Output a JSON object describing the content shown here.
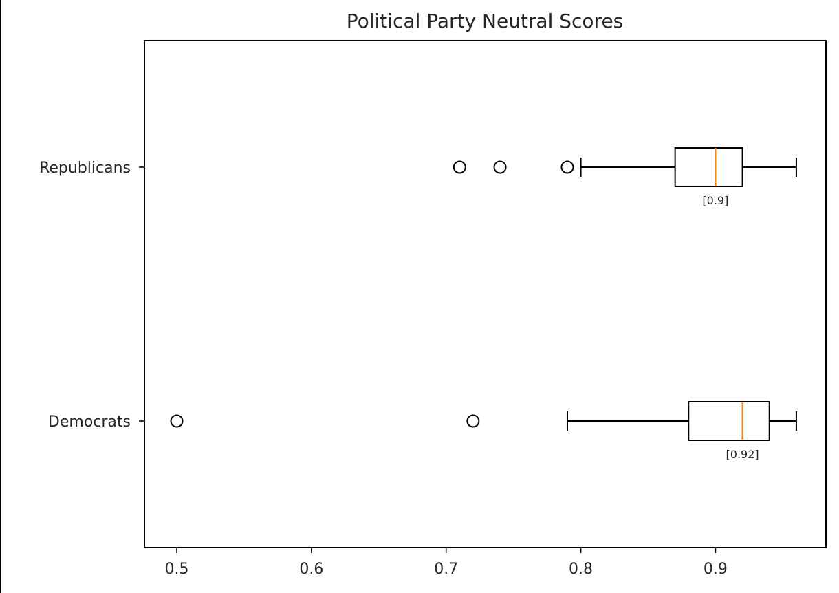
{
  "chart_data": {
    "type": "boxplot",
    "orientation": "horizontal",
    "title": "Political Party Neutral Scores",
    "xlabel": "",
    "ylabel": "",
    "xlim": [
      0.476,
      0.982
    ],
    "xticks": [
      0.5,
      0.6,
      0.7,
      0.8,
      0.9
    ],
    "xtick_labels": [
      "0.5",
      "0.6",
      "0.7",
      "0.8",
      "0.9"
    ],
    "grid": false,
    "colors": {
      "box": "#000000",
      "median": "#ff7f0e",
      "flier": "#000000",
      "axes": "#000000",
      "text": "#262626"
    },
    "series": [
      {
        "category": "Democrats",
        "whisker_low": 0.79,
        "q1": 0.88,
        "median": 0.92,
        "q3": 0.94,
        "whisker_high": 0.96,
        "outliers": [
          0.5,
          0.72
        ],
        "median_label": "[0.92]"
      },
      {
        "category": "Republicans",
        "whisker_low": 0.8,
        "q1": 0.87,
        "median": 0.9,
        "q3": 0.92,
        "whisker_high": 0.96,
        "outliers": [
          0.71,
          0.74,
          0.79
        ],
        "median_label": "[0.9]"
      }
    ]
  }
}
